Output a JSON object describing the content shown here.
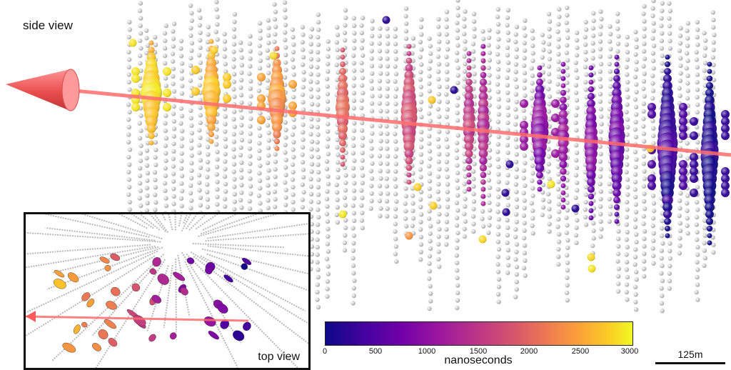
{
  "labels": {
    "side_view": "side view",
    "top_view": "top view",
    "colorbar_title": "nanoseconds",
    "scale": "125m"
  },
  "colorbar": {
    "ticks": [
      "0",
      "500",
      "1000",
      "1500",
      "2000",
      "2500",
      "3000"
    ],
    "min": 0,
    "max": 3000,
    "colormap": [
      "#0d0887",
      "#46039f",
      "#7201a8",
      "#9c179e",
      "#bd3786",
      "#d8576b",
      "#ed7953",
      "#fb9f3a",
      "#fdca26",
      "#f0f921"
    ]
  },
  "colors": {
    "track": "#ff6b6b",
    "arrow": "#ff4f4f",
    "unhit_dom": "#e4e4e4"
  }
}
